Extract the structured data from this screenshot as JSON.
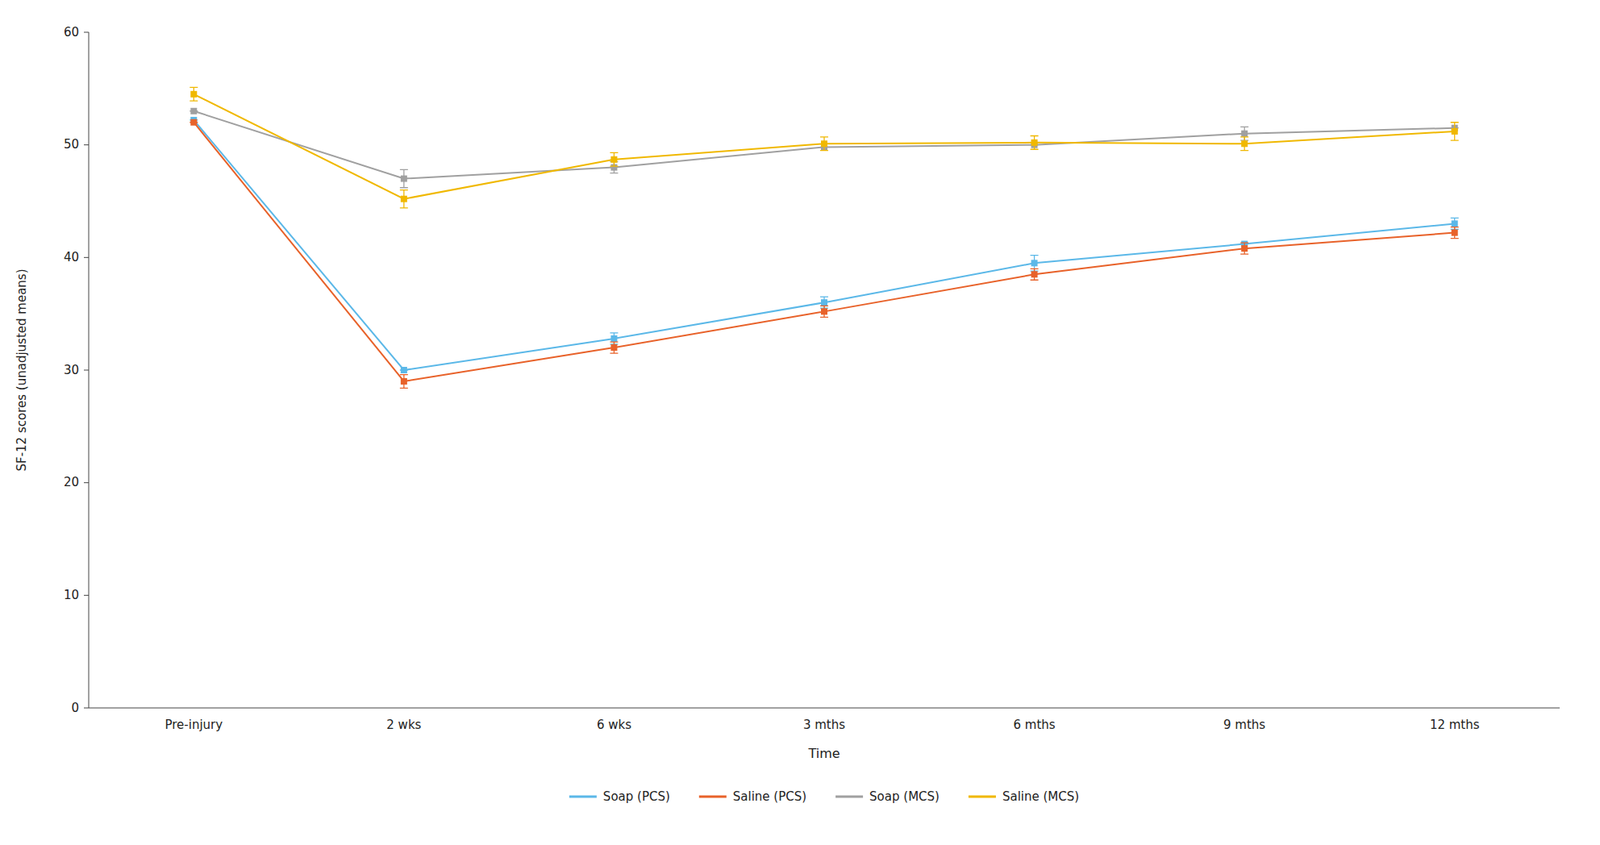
{
  "chart_data": {
    "type": "line",
    "categories": [
      "Pre-injury",
      "2 wks",
      "6 wks",
      "3 mths",
      "6 mths",
      "9 mths",
      "12 mths"
    ],
    "series": [
      {
        "name": "Soap (PCS)",
        "color": "#5BB8E8",
        "values": [
          52.2,
          30.0,
          32.8,
          36.0,
          39.5,
          41.2,
          43.0
        ],
        "errors": [
          0.0,
          0.0,
          0.5,
          0.5,
          0.7,
          0.0,
          0.5
        ]
      },
      {
        "name": "Saline (PCS)",
        "color": "#E8622A",
        "values": [
          52.0,
          29.0,
          32.0,
          35.2,
          38.5,
          40.8,
          42.2
        ],
        "errors": [
          0.0,
          0.6,
          0.5,
          0.5,
          0.5,
          0.5,
          0.5
        ]
      },
      {
        "name": "Soap (MCS)",
        "color": "#A0A0A0",
        "values": [
          53.0,
          47.0,
          48.0,
          49.8,
          50.0,
          51.0,
          51.5
        ],
        "errors": [
          0.0,
          0.8,
          0.5,
          0.0,
          0.0,
          0.6,
          0.0
        ]
      },
      {
        "name": "Saline (MCS)",
        "color": "#F0B800",
        "values": [
          54.5,
          45.2,
          48.7,
          50.1,
          50.2,
          50.1,
          51.2
        ],
        "errors": [
          0.6,
          0.8,
          0.6,
          0.6,
          0.6,
          0.6,
          0.8
        ]
      }
    ],
    "xlabel": "Time",
    "ylabel": "SF-12 scores (unadjusted means)",
    "ylim": [
      0,
      60
    ],
    "yticks": [
      0,
      10,
      20,
      30,
      40,
      50,
      60
    ],
    "grid": false,
    "legend": "bottom",
    "marker": "square"
  }
}
